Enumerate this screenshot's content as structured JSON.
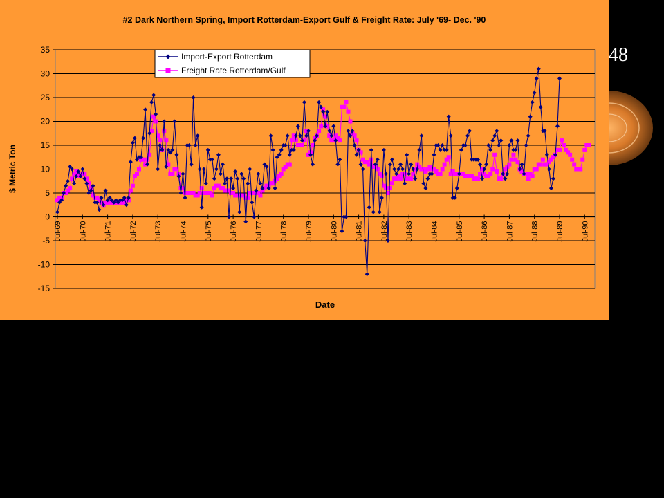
{
  "slide": {
    "number": "48"
  },
  "colors": {
    "panel": "#ff9933",
    "plot": "#ff9933",
    "import": "#000080",
    "freight": "#ff00ff"
  },
  "chart_data": {
    "type": "line",
    "title": "#2 Dark Northern Spring, Import Rotterdam-Export Gulf & Freight Rate: July '69- Dec. '90",
    "xlabel": "Date",
    "ylabel": "$ Metric Ton",
    "ylim": [
      -15,
      35
    ],
    "yticks": [
      -15,
      -10,
      -5,
      0,
      5,
      10,
      15,
      20,
      25,
      30,
      35
    ],
    "xticks": [
      "Jul-69",
      "Jul-70",
      "Jul-71",
      "Jul-72",
      "Jul-73",
      "Jul-74",
      "Jul-75",
      "Jul-76",
      "Jul-77",
      "Jul-78",
      "Jul-79",
      "Jul-80",
      "Jul-81",
      "Jul-82",
      "Jul-83",
      "Jul-84",
      "Jul-85",
      "Jul-86",
      "Jul-87",
      "Jul-88",
      "Jul-89",
      "Jul-90"
    ],
    "x_unit": "month",
    "x_start": "Jul-69",
    "legend": "top-left",
    "grid": "horizontal",
    "series": [
      {
        "name": "Import-Export Rotterdam",
        "values": [
          1,
          3,
          3.5,
          5,
          6.5,
          7.5,
          10.5,
          10,
          7,
          8.5,
          9.5,
          8.5,
          10,
          8,
          7,
          5,
          5.5,
          6.5,
          3,
          3,
          1.5,
          4,
          2.5,
          5.5,
          3.5,
          4,
          3.5,
          3,
          3.5,
          3,
          3.5,
          3.5,
          4,
          2.5,
          4,
          11.5,
          15.5,
          16.5,
          12,
          12.5,
          12.5,
          16.5,
          22.5,
          11,
          17.5,
          24,
          25.5,
          21.5,
          10,
          15,
          14,
          20,
          10.5,
          14,
          13.5,
          14,
          20,
          13,
          8.5,
          5,
          9,
          4,
          15,
          15,
          11,
          25,
          15,
          17,
          10,
          2,
          10,
          7,
          14,
          12,
          12,
          8,
          10,
          13,
          9,
          11,
          7,
          8,
          0,
          8,
          6,
          9.5,
          8,
          1,
          9,
          8,
          -1,
          7,
          10,
          3,
          0,
          5.5,
          9,
          7,
          6,
          11,
          10.5,
          6,
          17,
          14,
          6,
          12.5,
          13,
          14,
          15,
          15,
          17,
          13,
          14,
          14,
          17,
          19,
          17,
          16,
          24,
          17,
          18,
          13,
          11,
          16,
          17,
          24,
          23,
          22,
          19,
          22,
          18,
          17,
          19,
          16,
          11,
          12,
          -3,
          0,
          0,
          18,
          17,
          18,
          15,
          13,
          14,
          11,
          10,
          -5,
          -12,
          2,
          14,
          1,
          11,
          12,
          1,
          4,
          14,
          9,
          -5,
          11,
          12,
          10,
          9,
          10,
          11,
          10,
          7,
          13,
          9,
          11,
          10,
          8,
          10,
          14,
          17,
          7,
          6,
          8,
          9,
          9,
          13,
          15,
          15,
          14,
          15,
          14,
          14,
          21,
          17,
          4,
          4,
          6,
          9,
          14,
          15,
          15,
          17,
          18,
          12,
          12,
          12,
          12,
          11,
          8,
          10,
          11,
          15,
          14,
          16,
          17,
          18,
          15,
          16,
          9,
          8,
          9,
          15,
          16,
          14,
          14,
          16,
          10,
          11,
          9,
          15,
          17,
          21,
          24,
          26,
          29,
          31,
          23,
          18,
          18,
          13,
          10,
          6,
          8,
          13,
          19,
          29
        ]
      },
      {
        "name": "Freight Rate Rotterdam/Gulf",
        "values": [
          3.5,
          4,
          4,
          5,
          5,
          5.5,
          6,
          8,
          9,
          9.5,
          8.5,
          8.5,
          9,
          9,
          8,
          7,
          6,
          4.5,
          4,
          4,
          3.5,
          3,
          2.5,
          3,
          3,
          3,
          3,
          3,
          3,
          3,
          3,
          3,
          3,
          3.5,
          3.5,
          5.5,
          6.5,
          8.5,
          9,
          10,
          12,
          12,
          11,
          12,
          13,
          18,
          21,
          20,
          17,
          16,
          14,
          18,
          16,
          11,
          9,
          9,
          10,
          10,
          9,
          6,
          6,
          5,
          5,
          5,
          5,
          5,
          4.5,
          4.5,
          5,
          6,
          5,
          5,
          5,
          5,
          4.5,
          6,
          6.5,
          6.5,
          6,
          6,
          5.5,
          5.5,
          5.5,
          5,
          5,
          4.5,
          4.5,
          4.5,
          4.5,
          4.5,
          4,
          4,
          5,
          5,
          5,
          5,
          5,
          4.5,
          5.5,
          6,
          6.5,
          6.5,
          7,
          7,
          7.5,
          8,
          8.5,
          9,
          10,
          10.5,
          11,
          11,
          16,
          17,
          16,
          15,
          15,
          15,
          16,
          18,
          13,
          13.5,
          15,
          16.5,
          17,
          18,
          19,
          22.5,
          21,
          19,
          17,
          16,
          16,
          17,
          16.5,
          16,
          23,
          23,
          24,
          22,
          20,
          17.5,
          17,
          16,
          14,
          13.5,
          12,
          11.5,
          11.5,
          11,
          12,
          10.5,
          10.5,
          10,
          9,
          8.5,
          6.5,
          6,
          5,
          6,
          7,
          8,
          8,
          8.5,
          8,
          9,
          9,
          8,
          8,
          8,
          9,
          10,
          11,
          10.5,
          10,
          10,
          9.5,
          10,
          10.5,
          10,
          10,
          9.5,
          9,
          9,
          10,
          11,
          12,
          12.5,
          9,
          9.5,
          9,
          9,
          9,
          9,
          9,
          8.5,
          8.5,
          8.5,
          8.5,
          8,
          8,
          8,
          9,
          10,
          9,
          8.5,
          8.5,
          9,
          10,
          13,
          9.5,
          8,
          8,
          9,
          10,
          10.5,
          11,
          12,
          13,
          12,
          11.5,
          10,
          9.5,
          9,
          9,
          8,
          9,
          8.5,
          10,
          10,
          11,
          11,
          12,
          11,
          11,
          11.5,
          12,
          12.5,
          13,
          14,
          14,
          16,
          15,
          14,
          13.5,
          13,
          12,
          11,
          10,
          10,
          10,
          12,
          14,
          15,
          15
        ]
      }
    ]
  }
}
